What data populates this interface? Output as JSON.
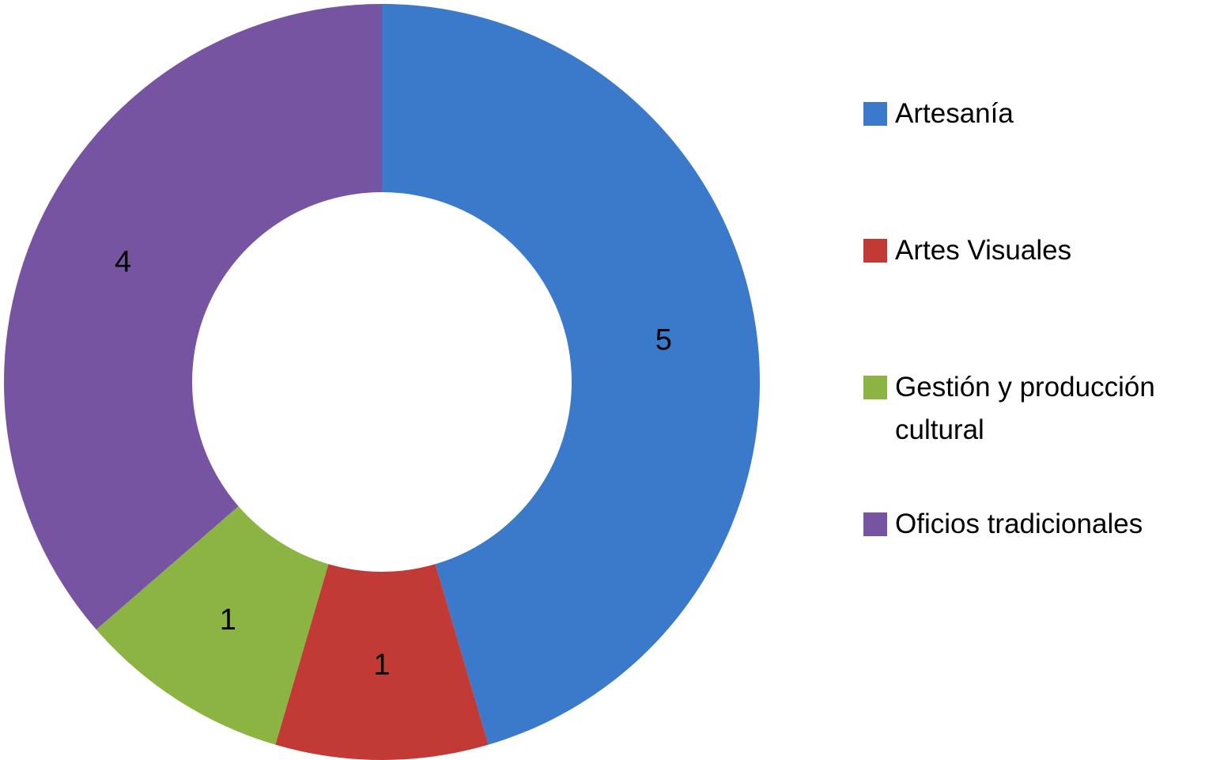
{
  "chart_data": {
    "type": "pie",
    "categories": [
      "Artesanía",
      "Artes Visuales",
      "Gestión y producción cultural",
      "Oficios tradicionales"
    ],
    "values": [
      5,
      1,
      1,
      4
    ],
    "colors": [
      "#3b7acb",
      "#c23a36",
      "#8cb443",
      "#7654a2"
    ],
    "legend": "right"
  }
}
